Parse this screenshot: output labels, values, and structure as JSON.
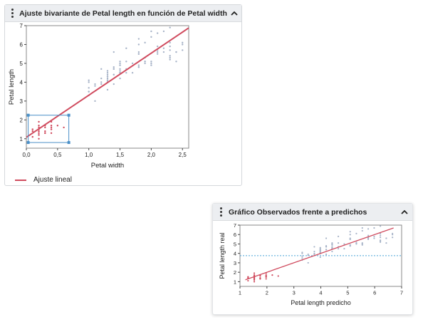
{
  "panel1": {
    "title": "Ajuste bivariante de Petal length en función de Petal width",
    "legend_label": "Ajuste lineal"
  },
  "panel2": {
    "title": "Gráfico Observados frente a predichos"
  },
  "icons": {
    "menu": "vertical-ellipsis-icon",
    "collapse": "chevron-up-icon"
  },
  "colors": {
    "fit_line": "#d04b5e",
    "setosa_points": "#d04b5e",
    "other_points": "#a8b4c8",
    "selection_box": "#4a90c8",
    "mean_line": "#4aa3d8"
  },
  "chart_data": [
    {
      "type": "scatter",
      "title": "Ajuste bivariante de Petal length en función de Petal width",
      "xlabel": "Petal width",
      "ylabel": "Petal length",
      "xlim": [
        0,
        2.6
      ],
      "ylim": [
        0.5,
        7
      ],
      "xticks": [
        "0,0",
        "0,5",
        "1,0",
        "1,5",
        "2,0",
        "2,5"
      ],
      "yticks": [
        "1",
        "2",
        "3",
        "4",
        "5",
        "6",
        "7"
      ],
      "fit_line": {
        "intercept": 1.08,
        "slope": 2.23,
        "name": "Ajuste lineal"
      },
      "selection_region": {
        "x": [
          0.03,
          0.68
        ],
        "y": [
          0.8,
          2.25
        ]
      },
      "series": [
        {
          "group": "highlighted",
          "points": [
            [
              0.2,
              1.4
            ],
            [
              0.2,
              1.3
            ],
            [
              0.2,
              1.5
            ],
            [
              0.2,
              1.6
            ],
            [
              0.2,
              1.4
            ],
            [
              0.4,
              1.7
            ],
            [
              0.3,
              1.4
            ],
            [
              0.2,
              1.5
            ],
            [
              0.1,
              1.5
            ],
            [
              0.1,
              1.1
            ],
            [
              0.2,
              1.2
            ],
            [
              0.4,
              1.5
            ],
            [
              0.3,
              1.3
            ],
            [
              0.4,
              1.9
            ],
            [
              0.2,
              1.0
            ],
            [
              0.5,
              1.7
            ],
            [
              0.6,
              1.6
            ],
            [
              0.2,
              1.9
            ],
            [
              0.3,
              1.6
            ],
            [
              0.1,
              1.4
            ],
            [
              0.2,
              1.7
            ],
            [
              0.4,
              1.5
            ],
            [
              0.3,
              1.7
            ],
            [
              0.1,
              1.5
            ],
            [
              0.3,
              1.3
            ],
            [
              0.4,
              1.6
            ],
            [
              0.2,
              1.2
            ],
            [
              0.4,
              1.3
            ]
          ]
        },
        {
          "group": "other",
          "points": [
            [
              1.4,
              4.7
            ],
            [
              1.5,
              4.5
            ],
            [
              1.5,
              4.9
            ],
            [
              1.3,
              4.0
            ],
            [
              1.5,
              4.6
            ],
            [
              1.3,
              4.5
            ],
            [
              1.6,
              4.7
            ],
            [
              1.0,
              3.3
            ],
            [
              1.3,
              4.6
            ],
            [
              1.4,
              3.9
            ],
            [
              1.0,
              3.5
            ],
            [
              1.5,
              4.2
            ],
            [
              1.0,
              4.0
            ],
            [
              1.4,
              4.7
            ],
            [
              1.3,
              3.6
            ],
            [
              1.4,
              4.4
            ],
            [
              1.5,
              4.5
            ],
            [
              1.0,
              4.1
            ],
            [
              1.5,
              4.5
            ],
            [
              1.1,
              3.9
            ],
            [
              1.8,
              4.8
            ],
            [
              1.3,
              4.0
            ],
            [
              1.5,
              4.9
            ],
            [
              1.2,
              4.7
            ],
            [
              1.3,
              4.3
            ],
            [
              1.4,
              4.4
            ],
            [
              1.4,
              4.8
            ],
            [
              1.7,
              5.0
            ],
            [
              1.5,
              4.5
            ],
            [
              1.0,
              3.5
            ],
            [
              1.1,
              3.8
            ],
            [
              1.0,
              3.7
            ],
            [
              1.2,
              3.9
            ],
            [
              1.6,
              5.1
            ],
            [
              1.5,
              4.5
            ],
            [
              1.6,
              4.5
            ],
            [
              1.5,
              4.7
            ],
            [
              1.3,
              4.4
            ],
            [
              1.3,
              4.1
            ],
            [
              1.2,
              4.0
            ],
            [
              1.3,
              4.2
            ],
            [
              1.2,
              4.2
            ],
            [
              1.3,
              4.3
            ],
            [
              1.1,
              3.0
            ],
            [
              1.3,
              4.1
            ],
            [
              2.5,
              6.0
            ],
            [
              1.9,
              5.1
            ],
            [
              2.1,
              5.9
            ],
            [
              1.8,
              5.6
            ],
            [
              2.2,
              5.8
            ],
            [
              2.1,
              6.6
            ],
            [
              1.7,
              4.5
            ],
            [
              1.8,
              6.3
            ],
            [
              2.5,
              6.1
            ],
            [
              2.0,
              5.1
            ],
            [
              1.9,
              5.3
            ],
            [
              2.1,
              5.5
            ],
            [
              2.0,
              5.0
            ],
            [
              2.4,
              5.1
            ],
            [
              2.3,
              5.3
            ],
            [
              1.8,
              5.5
            ],
            [
              2.2,
              6.7
            ],
            [
              2.3,
              6.9
            ],
            [
              1.5,
              5.0
            ],
            [
              2.3,
              5.7
            ],
            [
              2.0,
              4.9
            ],
            [
              2.0,
              6.7
            ],
            [
              1.8,
              4.9
            ],
            [
              2.1,
              5.7
            ],
            [
              1.8,
              6.0
            ],
            [
              1.8,
              4.8
            ],
            [
              2.1,
              5.6
            ],
            [
              1.6,
              5.8
            ],
            [
              1.9,
              6.1
            ],
            [
              2.0,
              6.4
            ],
            [
              2.2,
              5.6
            ],
            [
              1.5,
              5.1
            ],
            [
              1.4,
              5.6
            ],
            [
              2.3,
              6.1
            ],
            [
              2.4,
              5.6
            ],
            [
              1.8,
              5.5
            ],
            [
              2.4,
              5.6
            ],
            [
              1.9,
              5.1
            ],
            [
              2.3,
              5.9
            ],
            [
              2.5,
              5.7
            ],
            [
              2.3,
              5.2
            ],
            [
              1.9,
              5.0
            ],
            [
              2.3,
              5.4
            ]
          ]
        }
      ]
    },
    {
      "type": "scatter",
      "title": "Gráfico Observados frente a predichos",
      "xlabel": "Petal length predicho",
      "ylabel": "Petal length real",
      "xlim": [
        1,
        7
      ],
      "ylim": [
        0.5,
        7
      ],
      "xticks": [
        "1",
        "2",
        "3",
        "4",
        "5",
        "6",
        "7"
      ],
      "yticks": [
        "1",
        "2",
        "3",
        "4",
        "5",
        "6",
        "7"
      ],
      "fit_line": {
        "intercept": 0,
        "slope": 1
      },
      "mean_line_y": 3.76,
      "series": [
        {
          "group": "highlighted",
          "points": [
            [
              1.53,
              1.4
            ],
            [
              1.53,
              1.3
            ],
            [
              1.53,
              1.5
            ],
            [
              1.53,
              1.6
            ],
            [
              1.53,
              1.4
            ],
            [
              1.97,
              1.7
            ],
            [
              1.75,
              1.4
            ],
            [
              1.53,
              1.5
            ],
            [
              1.3,
              1.5
            ],
            [
              1.3,
              1.1
            ],
            [
              1.53,
              1.2
            ],
            [
              1.97,
              1.5
            ],
            [
              1.75,
              1.3
            ],
            [
              1.97,
              1.9
            ],
            [
              1.53,
              1.0
            ],
            [
              2.2,
              1.7
            ],
            [
              2.42,
              1.6
            ],
            [
              1.53,
              1.9
            ],
            [
              1.75,
              1.6
            ],
            [
              1.3,
              1.4
            ],
            [
              1.53,
              1.7
            ],
            [
              1.97,
              1.5
            ],
            [
              1.75,
              1.7
            ],
            [
              1.3,
              1.5
            ],
            [
              1.75,
              1.3
            ],
            [
              1.97,
              1.6
            ],
            [
              1.53,
              1.2
            ],
            [
              1.97,
              1.3
            ]
          ]
        },
        {
          "group": "other",
          "points": [
            [
              4.2,
              4.7
            ],
            [
              4.42,
              4.5
            ],
            [
              4.42,
              4.9
            ],
            [
              3.98,
              4.0
            ],
            [
              4.42,
              4.6
            ],
            [
              3.98,
              4.5
            ],
            [
              4.65,
              4.7
            ],
            [
              3.31,
              3.3
            ],
            [
              3.98,
              4.6
            ],
            [
              4.2,
              3.9
            ],
            [
              3.31,
              3.5
            ],
            [
              4.42,
              4.2
            ],
            [
              3.31,
              4.0
            ],
            [
              4.2,
              4.7
            ],
            [
              3.98,
              3.6
            ],
            [
              4.2,
              4.4
            ],
            [
              4.42,
              4.5
            ],
            [
              3.31,
              4.1
            ],
            [
              4.42,
              4.5
            ],
            [
              3.53,
              3.9
            ],
            [
              5.09,
              4.8
            ],
            [
              3.98,
              4.0
            ],
            [
              4.42,
              4.9
            ],
            [
              3.76,
              4.7
            ],
            [
              3.98,
              4.3
            ],
            [
              4.2,
              4.4
            ],
            [
              4.2,
              4.8
            ],
            [
              4.87,
              5.0
            ],
            [
              4.42,
              4.5
            ],
            [
              3.31,
              3.5
            ],
            [
              3.53,
              3.8
            ],
            [
              3.31,
              3.7
            ],
            [
              3.76,
              3.9
            ],
            [
              4.65,
              5.1
            ],
            [
              4.42,
              4.5
            ],
            [
              4.65,
              4.5
            ],
            [
              4.42,
              4.7
            ],
            [
              3.98,
              4.4
            ],
            [
              3.98,
              4.1
            ],
            [
              3.76,
              4.0
            ],
            [
              3.98,
              4.2
            ],
            [
              3.76,
              4.2
            ],
            [
              3.98,
              4.3
            ],
            [
              3.53,
              3.0
            ],
            [
              3.98,
              4.1
            ],
            [
              6.66,
              6.0
            ],
            [
              5.32,
              5.1
            ],
            [
              5.76,
              5.9
            ],
            [
              5.09,
              5.6
            ],
            [
              5.98,
              5.8
            ],
            [
              5.76,
              6.6
            ],
            [
              4.87,
              4.5
            ],
            [
              5.09,
              6.3
            ],
            [
              6.66,
              6.1
            ],
            [
              5.54,
              5.1
            ],
            [
              5.32,
              5.3
            ],
            [
              5.76,
              5.5
            ],
            [
              5.54,
              5.0
            ],
            [
              6.43,
              5.1
            ],
            [
              6.21,
              5.3
            ],
            [
              5.09,
              5.5
            ],
            [
              5.98,
              6.7
            ],
            [
              6.21,
              6.9
            ],
            [
              4.42,
              5.0
            ],
            [
              6.21,
              5.7
            ],
            [
              5.54,
              4.9
            ],
            [
              5.54,
              6.7
            ],
            [
              5.09,
              4.9
            ],
            [
              5.76,
              5.7
            ],
            [
              5.09,
              6.0
            ],
            [
              5.09,
              4.8
            ],
            [
              5.76,
              5.6
            ],
            [
              4.65,
              5.8
            ],
            [
              5.32,
              6.1
            ],
            [
              5.54,
              6.4
            ],
            [
              5.98,
              5.6
            ],
            [
              4.42,
              5.1
            ],
            [
              4.2,
              5.6
            ],
            [
              6.21,
              6.1
            ],
            [
              6.43,
              5.6
            ],
            [
              5.09,
              5.5
            ],
            [
              6.43,
              5.6
            ],
            [
              5.32,
              5.1
            ],
            [
              6.21,
              5.9
            ],
            [
              6.66,
              5.7
            ],
            [
              6.21,
              5.2
            ],
            [
              5.32,
              5.0
            ],
            [
              6.21,
              5.4
            ]
          ]
        }
      ]
    }
  ]
}
